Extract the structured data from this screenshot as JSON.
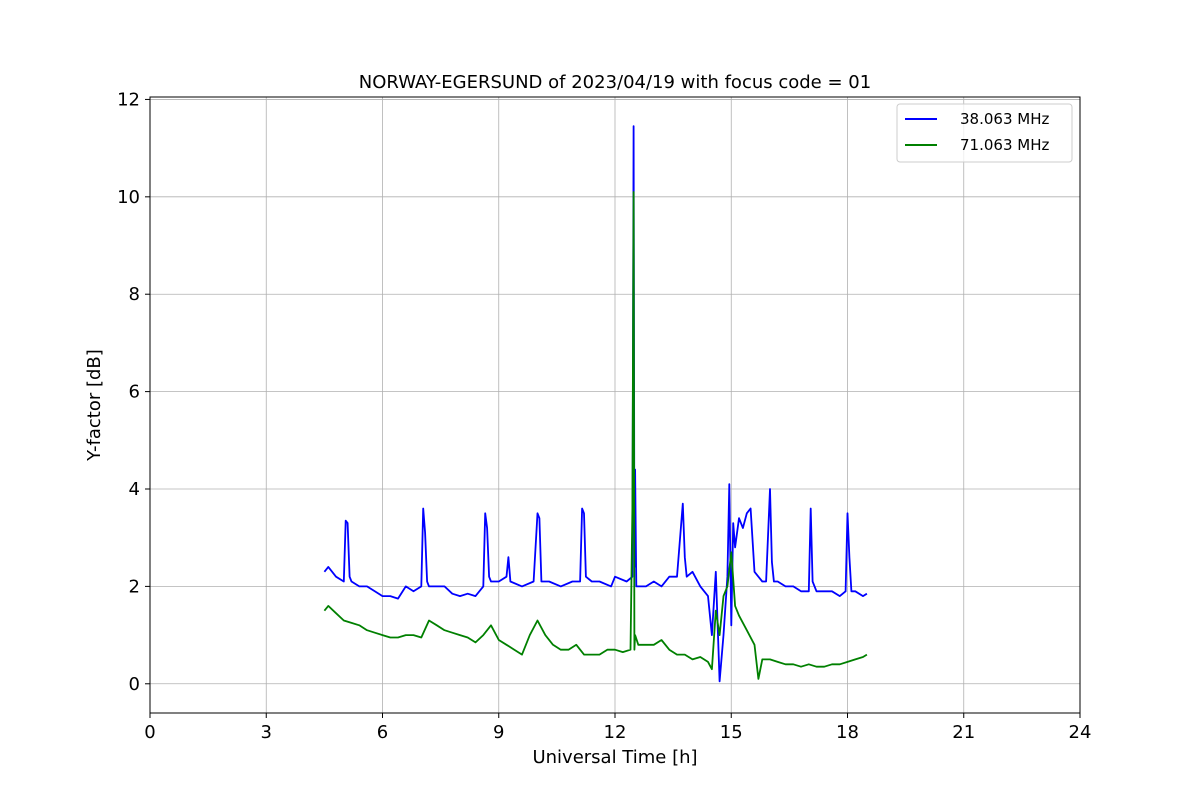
{
  "chart_data": {
    "type": "line",
    "title": "NORWAY-EGERSUND of 2023/04/19 with focus code = 01",
    "xlabel": "Universal Time [h]",
    "ylabel": "Y-factor [dB]",
    "xlim": [
      0,
      24
    ],
    "ylim": [
      -0.6,
      12.05
    ],
    "xticks": [
      0,
      3,
      6,
      9,
      12,
      15,
      18,
      21,
      24
    ],
    "yticks": [
      0,
      2,
      4,
      6,
      8,
      10,
      12
    ],
    "xtick_labels": [
      "0",
      "3",
      "6",
      "9",
      "12",
      "15",
      "18",
      "21",
      "24"
    ],
    "ytick_labels": [
      "0",
      "2",
      "4",
      "6",
      "8",
      "10",
      "12"
    ],
    "grid": true,
    "legend_position": "top-right",
    "series": [
      {
        "name": "38.063 MHz",
        "color": "#0000ff",
        "x": [
          4.5,
          4.6,
          4.8,
          5.0,
          5.05,
          5.1,
          5.15,
          5.2,
          5.4,
          5.6,
          5.8,
          6.0,
          6.2,
          6.4,
          6.6,
          6.8,
          7.0,
          7.05,
          7.1,
          7.15,
          7.2,
          7.4,
          7.6,
          7.8,
          8.0,
          8.2,
          8.4,
          8.6,
          8.65,
          8.7,
          8.75,
          8.8,
          9.0,
          9.2,
          9.25,
          9.3,
          9.6,
          9.9,
          10.0,
          10.05,
          10.1,
          10.3,
          10.6,
          10.9,
          11.1,
          11.15,
          11.2,
          11.25,
          11.4,
          11.6,
          11.9,
          12.0,
          12.3,
          12.45,
          12.48,
          12.5,
          12.52,
          12.55,
          12.6,
          12.8,
          13.0,
          13.2,
          13.4,
          13.6,
          13.75,
          13.8,
          13.85,
          14.0,
          14.2,
          14.4,
          14.5,
          14.6,
          14.7,
          14.8,
          14.9,
          14.95,
          15.0,
          15.05,
          15.1,
          15.2,
          15.3,
          15.4,
          15.5,
          15.6,
          15.7,
          15.8,
          15.9,
          16.0,
          16.05,
          16.1,
          16.2,
          16.4,
          16.6,
          16.8,
          17.0,
          17.05,
          17.1,
          17.2,
          17.4,
          17.6,
          17.8,
          17.95,
          18.0,
          18.05,
          18.1,
          18.2,
          18.4,
          18.5
        ],
        "values": [
          2.3,
          2.4,
          2.2,
          2.1,
          3.35,
          3.3,
          2.2,
          2.1,
          2.0,
          2.0,
          1.9,
          1.8,
          1.8,
          1.75,
          2.0,
          1.9,
          2.0,
          3.6,
          3.1,
          2.1,
          2.0,
          2.0,
          2.0,
          1.85,
          1.8,
          1.85,
          1.8,
          2.0,
          3.5,
          3.2,
          2.2,
          2.1,
          2.1,
          2.2,
          2.6,
          2.1,
          2.0,
          2.1,
          3.5,
          3.4,
          2.1,
          2.1,
          2.0,
          2.1,
          2.1,
          3.6,
          3.5,
          2.2,
          2.1,
          2.1,
          2.0,
          2.2,
          2.1,
          2.2,
          11.45,
          2.4,
          4.4,
          2.0,
          2.0,
          2.0,
          2.1,
          2.0,
          2.2,
          2.2,
          3.7,
          2.6,
          2.2,
          2.3,
          2.0,
          1.8,
          1.0,
          2.3,
          0.05,
          1.0,
          2.2,
          4.1,
          1.2,
          3.3,
          2.8,
          3.4,
          3.2,
          3.5,
          3.6,
          2.3,
          2.2,
          2.1,
          2.1,
          4.0,
          2.5,
          2.1,
          2.1,
          2.0,
          2.0,
          1.9,
          1.9,
          3.6,
          2.1,
          1.9,
          1.9,
          1.9,
          1.8,
          1.9,
          3.5,
          2.6,
          1.9,
          1.9,
          1.8,
          1.85
        ]
      },
      {
        "name": "71.063 MHz",
        "color": "#008000",
        "x": [
          4.5,
          4.6,
          4.8,
          5.0,
          5.2,
          5.4,
          5.6,
          5.8,
          6.0,
          6.2,
          6.4,
          6.6,
          6.8,
          7.0,
          7.2,
          7.4,
          7.6,
          7.8,
          8.0,
          8.2,
          8.4,
          8.6,
          8.8,
          9.0,
          9.2,
          9.4,
          9.6,
          9.8,
          10.0,
          10.2,
          10.4,
          10.6,
          10.8,
          11.0,
          11.2,
          11.4,
          11.6,
          11.8,
          12.0,
          12.2,
          12.4,
          12.45,
          12.48,
          12.5,
          12.52,
          12.6,
          12.8,
          13.0,
          13.2,
          13.4,
          13.6,
          13.8,
          14.0,
          14.2,
          14.4,
          14.5,
          14.6,
          14.7,
          14.8,
          14.9,
          15.0,
          15.1,
          15.2,
          15.4,
          15.6,
          15.7,
          15.8,
          16.0,
          16.2,
          16.4,
          16.6,
          16.8,
          17.0,
          17.2,
          17.4,
          17.6,
          17.8,
          18.0,
          18.2,
          18.4,
          18.5
        ],
        "values": [
          1.5,
          1.6,
          1.45,
          1.3,
          1.25,
          1.2,
          1.1,
          1.05,
          1.0,
          0.95,
          0.95,
          1.0,
          1.0,
          0.95,
          1.3,
          1.2,
          1.1,
          1.05,
          1.0,
          0.95,
          0.85,
          1.0,
          1.2,
          0.9,
          0.8,
          0.7,
          0.6,
          1.0,
          1.3,
          1.0,
          0.8,
          0.7,
          0.7,
          0.8,
          0.6,
          0.6,
          0.6,
          0.7,
          0.7,
          0.65,
          0.7,
          3.6,
          10.1,
          0.7,
          1.0,
          0.8,
          0.8,
          0.8,
          0.9,
          0.7,
          0.6,
          0.6,
          0.5,
          0.55,
          0.45,
          0.3,
          1.5,
          1.0,
          1.8,
          2.0,
          2.7,
          1.6,
          1.4,
          1.1,
          0.8,
          0.1,
          0.5,
          0.5,
          0.45,
          0.4,
          0.4,
          0.35,
          0.4,
          0.35,
          0.35,
          0.4,
          0.4,
          0.45,
          0.5,
          0.55,
          0.6
        ]
      }
    ]
  }
}
